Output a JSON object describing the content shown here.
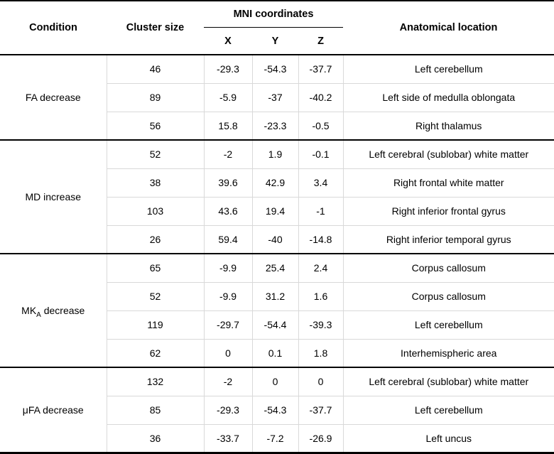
{
  "table": {
    "headers": {
      "condition": "Condition",
      "cluster_size": "Cluster size",
      "mni": "MNI coordinates",
      "x": "X",
      "y": "Y",
      "z": "Z",
      "anatomical": "Anatomical location"
    },
    "groups": [
      {
        "condition": {
          "main": "FA decrease",
          "sub": "",
          "rest": ""
        },
        "rows": [
          {
            "cluster_size": "46",
            "x": "-29.3",
            "y": "-54.3",
            "z": "-37.7",
            "location": "Left cerebellum"
          },
          {
            "cluster_size": "89",
            "x": "-5.9",
            "y": "-37",
            "z": "-40.2",
            "location": "Left side of medulla oblongata"
          },
          {
            "cluster_size": "56",
            "x": "15.8",
            "y": "-23.3",
            "z": "-0.5",
            "location": "Right thalamus"
          }
        ]
      },
      {
        "condition": {
          "main": "MD increase",
          "sub": "",
          "rest": ""
        },
        "rows": [
          {
            "cluster_size": "52",
            "x": "-2",
            "y": "1.9",
            "z": "-0.1",
            "location": "Left cerebral (sublobar) white matter"
          },
          {
            "cluster_size": "38",
            "x": "39.6",
            "y": "42.9",
            "z": "3.4",
            "location": "Right frontal white matter"
          },
          {
            "cluster_size": "103",
            "x": "43.6",
            "y": "19.4",
            "z": "-1",
            "location": "Right inferior frontal gyrus"
          },
          {
            "cluster_size": "26",
            "x": "59.4",
            "y": "-40",
            "z": "-14.8",
            "location": "Right inferior temporal gyrus"
          }
        ]
      },
      {
        "condition": {
          "main": "MK",
          "sub": "A",
          "rest": " decrease"
        },
        "rows": [
          {
            "cluster_size": "65",
            "x": "-9.9",
            "y": "25.4",
            "z": "2.4",
            "location": "Corpus callosum"
          },
          {
            "cluster_size": "52",
            "x": "-9.9",
            "y": "31.2",
            "z": "1.6",
            "location": "Corpus callosum"
          },
          {
            "cluster_size": "119",
            "x": "-29.7",
            "y": "-54.4",
            "z": "-39.3",
            "location": "Left cerebellum"
          },
          {
            "cluster_size": "62",
            "x": "0",
            "y": "0.1",
            "z": "1.8",
            "location": "Interhemispheric area"
          }
        ]
      },
      {
        "condition": {
          "main": "μFA decrease",
          "sub": "",
          "rest": ""
        },
        "rows": [
          {
            "cluster_size": "132",
            "x": "-2",
            "y": "0",
            "z": "0",
            "location": "Left cerebral (sublobar) white matter"
          },
          {
            "cluster_size": "85",
            "x": "-29.3",
            "y": "-54.3",
            "z": "-37.7",
            "location": "Left cerebellum"
          },
          {
            "cluster_size": "36",
            "x": "-33.7",
            "y": "-7.2",
            "z": "-26.9",
            "location": "Left uncus"
          }
        ]
      }
    ]
  }
}
